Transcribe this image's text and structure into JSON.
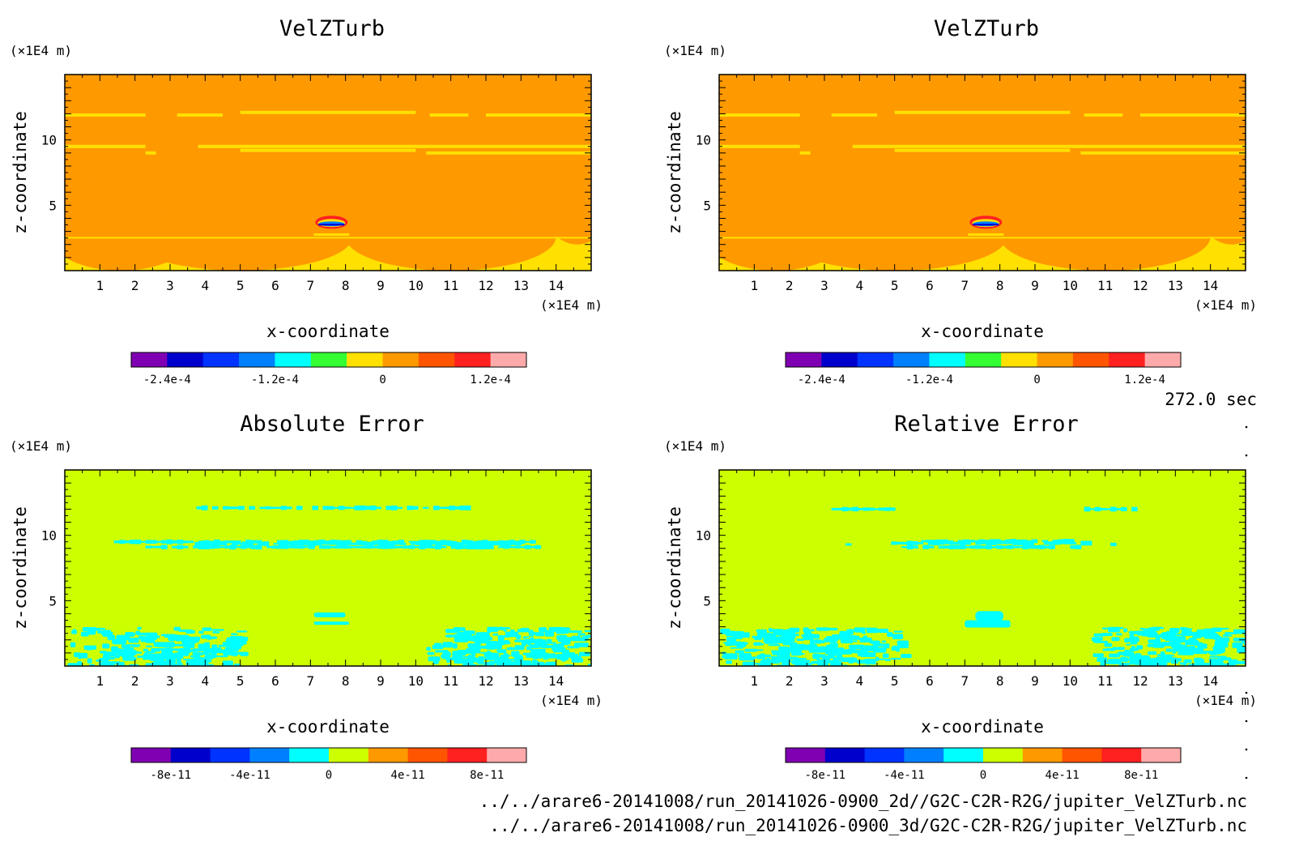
{
  "figure": {
    "time_label": "272.0 sec",
    "files": [
      "../../arare6-20141008/run_20141026-0900_2d//G2C-C2R-R2G/jupiter_VelZTurb.nc",
      "../../arare6-20141008/run_20141026-0900_3d/G2C-C2R-R2G/jupiter_VelZTurb.nc"
    ]
  },
  "colors": {
    "velz_background": "#ff9900",
    "velz_band": "#ffe000",
    "err_background": "#ccff00",
    "err_band": "#00ffff"
  },
  "chart_data": [
    {
      "type": "heatmap",
      "title": "VelZTurb",
      "xlabel": "x-coordinate",
      "ylabel": "z-coordinate",
      "x_unit": "(×1E4 m)",
      "y_unit": "(×1E4 m)",
      "xlim": [
        0,
        15
      ],
      "ylim": [
        0,
        15
      ],
      "xticks": [
        "1",
        "2",
        "3",
        "4",
        "5",
        "6",
        "7",
        "8",
        "9",
        "10",
        "11",
        "12",
        "13",
        "14"
      ],
      "yticks": [
        "5",
        "10"
      ],
      "colorbar": {
        "colors": [
          "#7f00b2",
          "#0000cc",
          "#0033ff",
          "#0080ff",
          "#00ffff",
          "#33ff33",
          "#ffe000",
          "#ff9900",
          "#ff5500",
          "#ff2020",
          "#ffaaaa"
        ],
        "tick_labels": [
          "-2.4e-4",
          "-1.2e-4",
          "0",
          "1.2e-4"
        ]
      }
    },
    {
      "type": "heatmap",
      "title": "VelZTurb",
      "xlabel": "x-coordinate",
      "ylabel": "z-coordinate",
      "x_unit": "(×1E4 m)",
      "y_unit": "(×1E4 m)",
      "xlim": [
        0,
        15
      ],
      "ylim": [
        0,
        15
      ],
      "xticks": [
        "1",
        "2",
        "3",
        "4",
        "5",
        "6",
        "7",
        "8",
        "9",
        "10",
        "11",
        "12",
        "13",
        "14"
      ],
      "yticks": [
        "5",
        "10"
      ],
      "colorbar": {
        "colors": [
          "#7f00b2",
          "#0000cc",
          "#0033ff",
          "#0080ff",
          "#00ffff",
          "#33ff33",
          "#ffe000",
          "#ff9900",
          "#ff5500",
          "#ff2020",
          "#ffaaaa"
        ],
        "tick_labels": [
          "-2.4e-4",
          "-1.2e-4",
          "0",
          "1.2e-4"
        ]
      }
    },
    {
      "type": "heatmap",
      "title": "Absolute Error",
      "xlabel": "x-coordinate",
      "ylabel": "z-coordinate",
      "x_unit": "(×1E4 m)",
      "y_unit": "(×1E4 m)",
      "xlim": [
        0,
        15
      ],
      "ylim": [
        0,
        15
      ],
      "xticks": [
        "1",
        "2",
        "3",
        "4",
        "5",
        "6",
        "7",
        "8",
        "9",
        "10",
        "11",
        "12",
        "13",
        "14"
      ],
      "yticks": [
        "5",
        "10"
      ],
      "colorbar": {
        "colors": [
          "#7f00b2",
          "#0000cc",
          "#0033ff",
          "#0080ff",
          "#00ffff",
          "#ccff00",
          "#ff9900",
          "#ff5500",
          "#ff2020",
          "#ffaaaa"
        ],
        "tick_labels": [
          "-8e-11",
          "-4e-11",
          "0",
          "4e-11",
          "8e-11"
        ]
      }
    },
    {
      "type": "heatmap",
      "title": "Relative Error",
      "xlabel": "x-coordinate",
      "ylabel": "z-coordinate",
      "x_unit": "(×1E4 m)",
      "y_unit": "(×1E4 m)",
      "xlim": [
        0,
        15
      ],
      "ylim": [
        0,
        15
      ],
      "xticks": [
        "1",
        "2",
        "3",
        "4",
        "5",
        "6",
        "7",
        "8",
        "9",
        "10",
        "11",
        "12",
        "13",
        "14"
      ],
      "yticks": [
        "5",
        "10"
      ],
      "colorbar": {
        "colors": [
          "#7f00b2",
          "#0000cc",
          "#0033ff",
          "#0080ff",
          "#00ffff",
          "#ccff00",
          "#ff9900",
          "#ff5500",
          "#ff2020",
          "#ffaaaa"
        ],
        "tick_labels": [
          "-8e-11",
          "-4e-11",
          "0",
          "4e-11",
          "8e-11"
        ]
      }
    }
  ]
}
